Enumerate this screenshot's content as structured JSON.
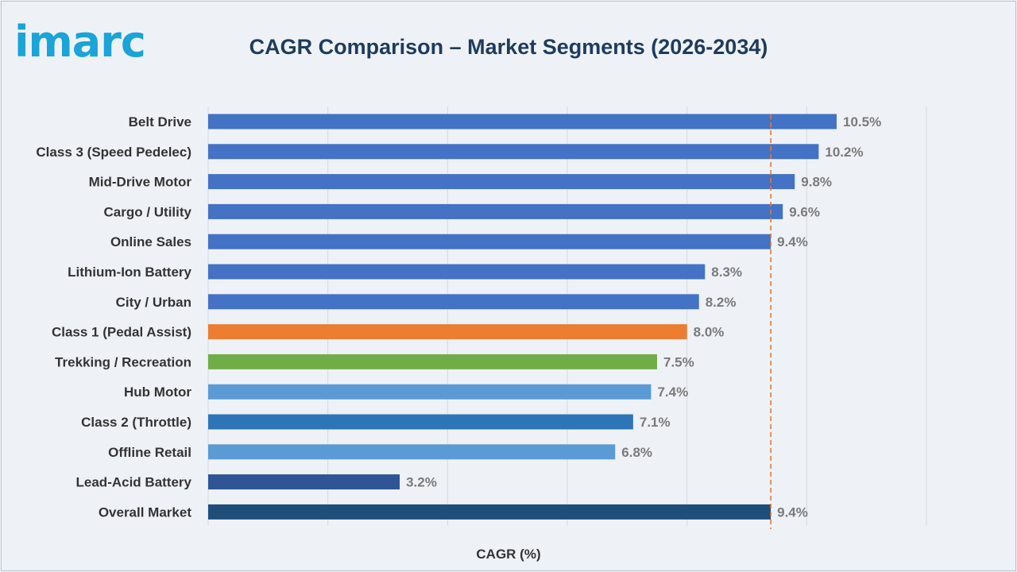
{
  "brand": {
    "logo_text": "imarc"
  },
  "chart_data": {
    "type": "bar",
    "orientation": "horizontal",
    "title": "CAGR Comparison – Market Segments (2026-2034)",
    "xlabel": "CAGR (%)",
    "ylabel": "",
    "xlim": [
      0,
      12
    ],
    "grid": true,
    "value_suffix": "%",
    "reference_line": {
      "value": 9.4,
      "style": "dashed",
      "color": "#e07b39"
    },
    "categories": [
      "Belt Drive",
      "Class 3 (Speed Pedelec)",
      "Mid-Drive Motor",
      "Cargo / Utility",
      "Online Sales",
      "Lithium-Ion Battery",
      "City / Urban",
      "Class 1 (Pedal Assist)",
      "Trekking / Recreation",
      "Hub Motor",
      "Class 2 (Throttle)",
      "Offline Retail",
      "Lead-Acid Battery",
      "Overall Market"
    ],
    "values": [
      10.5,
      10.2,
      9.8,
      9.6,
      9.4,
      8.3,
      8.2,
      8.0,
      7.5,
      7.4,
      7.1,
      6.8,
      3.2,
      9.4
    ],
    "colors": [
      "#4472c4",
      "#4472c4",
      "#4472c4",
      "#4472c4",
      "#4472c4",
      "#4472c4",
      "#4472c4",
      "#ed7d31",
      "#70ad47",
      "#5b9bd5",
      "#2e75b6",
      "#5b9bd5",
      "#2f5597",
      "#1f4e79"
    ]
  }
}
